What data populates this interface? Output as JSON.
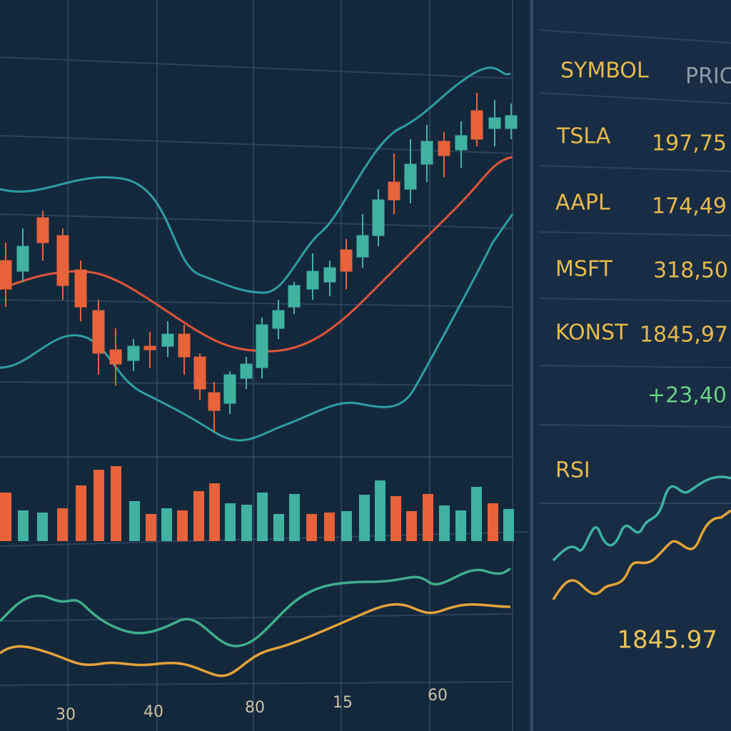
{
  "watchlist": {
    "headers": [
      "SYMBOL",
      "PRIC"
    ],
    "rows": [
      [
        "TSLA",
        "197,75"
      ],
      [
        "AAPL",
        "174,49"
      ],
      [
        "MSFT",
        "318,50"
      ],
      [
        "KONST",
        "1845,97"
      ]
    ],
    "change": "+23,40"
  },
  "indicator": {
    "title": "RSI",
    "value": "1845.97"
  },
  "x_axis_labels": [
    "30",
    "40",
    "80",
    "15",
    "60"
  ]
}
